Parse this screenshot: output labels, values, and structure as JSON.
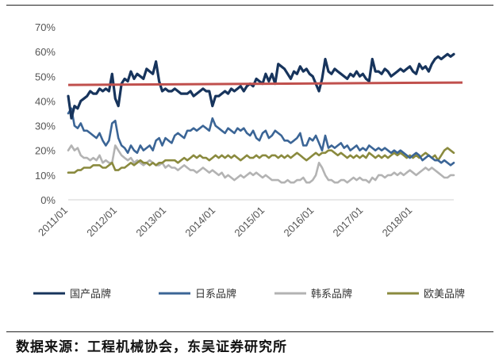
{
  "source_note": "数据来源：工程机械协会，东吴证券研究所",
  "chart_data": {
    "type": "line",
    "y_ticks": [
      "0%",
      "10%",
      "20%",
      "30%",
      "40%",
      "50%",
      "60%",
      "70%"
    ],
    "ylim": [
      0,
      70
    ],
    "x_ticks": [
      "2011/01",
      "2012/01",
      "2013/01",
      "2014/01",
      "2015/01",
      "2016/01",
      "2017/01",
      "2018/01"
    ],
    "x_start": "2011/01",
    "x_end": "2018/11",
    "grid": false,
    "legend_position": "bottom",
    "series": [
      {
        "name": "国产品牌",
        "color": "#17345c",
        "width": 3.2,
        "values": [
          42,
          33,
          38,
          37,
          40,
          41,
          42,
          44,
          43,
          43,
          45,
          44,
          45,
          44,
          51,
          41,
          38,
          47,
          49,
          48,
          52,
          49,
          51,
          50,
          49,
          53,
          52,
          51,
          56,
          48,
          44,
          45,
          44,
          44,
          45,
          44,
          43,
          43,
          43,
          44,
          42,
          43,
          44,
          45,
          44,
          44,
          38,
          42,
          42,
          43,
          44,
          43,
          45,
          44,
          45,
          46,
          44,
          46,
          47,
          46,
          49,
          48,
          47,
          51,
          48,
          51,
          47,
          55,
          54,
          53,
          51,
          49,
          52,
          51,
          54,
          52,
          53,
          51,
          50,
          47,
          44,
          49,
          57,
          52,
          51,
          53,
          52,
          51,
          50,
          49,
          51,
          50,
          52,
          50,
          51,
          49,
          48,
          57,
          52,
          52,
          51,
          53,
          52,
          50,
          51,
          52,
          53,
          52,
          53,
          54,
          52,
          51,
          55,
          53,
          54,
          52,
          55,
          57,
          58,
          57,
          58,
          59,
          58,
          59
        ]
      },
      {
        "name": "日系品牌",
        "color": "#3b6596",
        "width": 2.6,
        "values": [
          35,
          37,
          30,
          29,
          31,
          28,
          28,
          27,
          26,
          25,
          27,
          24,
          22,
          24,
          31,
          32,
          25,
          22,
          21,
          19,
          22,
          20,
          19,
          22,
          20,
          21,
          22,
          20,
          24,
          25,
          22,
          25,
          24,
          23,
          26,
          27,
          26,
          25,
          28,
          28,
          29,
          28,
          29,
          30,
          29,
          28,
          33,
          30,
          29,
          28,
          27,
          29,
          28,
          27,
          29,
          28,
          29,
          27,
          26,
          28,
          25,
          24,
          27,
          28,
          25,
          26,
          28,
          27,
          26,
          24,
          24,
          23,
          24,
          25,
          27,
          22,
          22,
          25,
          24,
          26,
          23,
          20,
          26,
          21,
          22,
          21,
          22,
          23,
          21,
          22,
          20,
          21,
          22,
          20,
          21,
          20,
          22,
          21,
          20,
          21,
          20,
          21,
          20,
          19,
          20,
          19,
          20,
          19,
          18,
          17,
          18,
          19,
          18,
          16,
          17,
          18,
          17,
          16,
          16,
          15,
          16,
          15,
          14,
          15
        ]
      },
      {
        "name": "韩系品牌",
        "color": "#b3b3b3",
        "width": 2.6,
        "values": [
          20,
          22,
          20,
          21,
          18,
          17,
          17,
          16,
          17,
          16,
          18,
          15,
          16,
          15,
          15,
          22,
          20,
          18,
          17,
          16,
          17,
          15,
          16,
          15,
          14,
          15,
          16,
          15,
          14,
          14,
          15,
          13,
          14,
          13,
          13,
          12,
          13,
          14,
          13,
          12,
          12,
          11,
          12,
          13,
          12,
          11,
          12,
          11,
          10,
          11,
          9,
          10,
          9,
          8,
          9,
          10,
          9,
          10,
          11,
          10,
          11,
          10,
          9,
          10,
          9,
          8,
          8,
          8,
          7,
          7,
          8,
          7,
          7,
          8,
          8,
          9,
          7,
          7,
          8,
          10,
          15,
          13,
          10,
          8,
          8,
          7,
          7,
          8,
          8,
          7,
          8,
          9,
          8,
          9,
          8,
          8,
          7,
          9,
          8,
          10,
          10,
          9,
          10,
          10,
          11,
          10,
          11,
          10,
          11,
          12,
          11,
          10,
          11,
          12,
          13,
          12,
          13,
          12,
          11,
          10,
          9,
          9,
          10,
          10
        ]
      },
      {
        "name": "欧美品牌",
        "color": "#8a8a3e",
        "width": 2.6,
        "values": [
          11,
          11,
          11,
          12,
          12,
          13,
          13,
          13,
          14,
          14,
          14,
          13,
          13,
          14,
          15,
          12,
          12,
          13,
          13,
          14,
          15,
          14,
          15,
          16,
          15,
          15,
          14,
          15,
          14,
          15,
          15,
          16,
          16,
          16,
          16,
          15,
          16,
          17,
          16,
          17,
          18,
          17,
          18,
          17,
          17,
          16,
          17,
          18,
          17,
          18,
          17,
          18,
          17,
          18,
          17,
          16,
          17,
          18,
          17,
          17,
          18,
          17,
          18,
          18,
          17,
          18,
          18,
          17,
          18,
          17,
          18,
          17,
          18,
          19,
          18,
          17,
          16,
          17,
          18,
          19,
          18,
          19,
          19,
          20,
          20,
          19,
          18,
          19,
          18,
          17,
          18,
          17,
          18,
          17,
          18,
          17,
          19,
          18,
          17,
          18,
          17,
          18,
          17,
          18,
          19,
          18,
          19,
          18,
          17,
          18,
          17,
          18,
          17,
          18,
          19,
          18,
          17,
          18,
          16,
          18,
          20,
          21,
          20,
          19
        ]
      }
    ],
    "reference_line": {
      "color": "#c0504d",
      "values": [
        46.5,
        47.5
      ]
    }
  }
}
